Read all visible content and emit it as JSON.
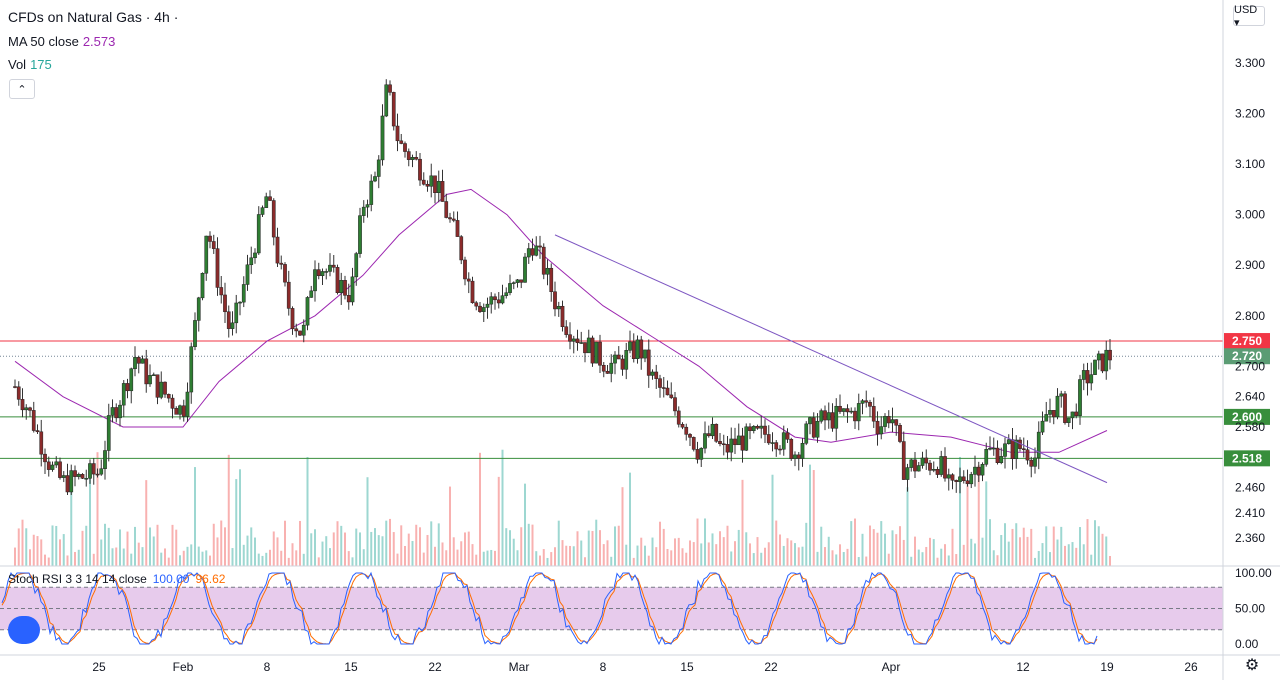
{
  "header": {
    "title": "CFDs on Natural Gas · 4h ·",
    "ma_label": "MA 50 close",
    "ma_value": "2.573",
    "vol_label": "Vol",
    "vol_value": "175",
    "collapse_glyph": "⌃"
  },
  "controls": {
    "currency_label": "USD ▾",
    "settings_icon": "gear-icon",
    "logo_icon": "tradingview-logo-icon"
  },
  "colors": {
    "up": "#26a69a",
    "down": "#ef5350",
    "candle_body": "#2e7d32",
    "candle_body_down": "#8b2b2b",
    "ma": "#9c27b0",
    "trend": "#7e57c2",
    "resistance": "#f23645",
    "support": "#388e3c",
    "stoch_k": "#2962ff",
    "stoch_d": "#ff6d00",
    "stoch_band": "#e1bee7"
  },
  "chart_data": {
    "type": "candlestick",
    "title": "CFDs on Natural Gas · 4h",
    "ylim": [
      2.35,
      3.33
    ],
    "y_ticks": [
      "3.300",
      "3.200",
      "3.100",
      "3.000",
      "2.900",
      "2.800",
      "2.700",
      "2.640",
      "2.580",
      "2.460",
      "2.410",
      "2.360"
    ],
    "y_tick_values": [
      3.3,
      3.2,
      3.1,
      3.0,
      2.9,
      2.8,
      2.7,
      2.64,
      2.58,
      2.46,
      2.41,
      2.36
    ],
    "x_ticks": [
      "25",
      "Feb",
      "8",
      "15",
      "22",
      "Mar",
      "8",
      "15",
      "22",
      "Apr",
      "12",
      "19",
      "26"
    ],
    "x_tick_dates": [
      "2021-01-25",
      "2021-02-01",
      "2021-02-08",
      "2021-02-15",
      "2021-02-22",
      "2021-03-01",
      "2021-03-08",
      "2021-03-15",
      "2021-03-22",
      "2021-04-01",
      "2021-04-12",
      "2021-04-19",
      "2021-04-26"
    ],
    "date_range": [
      "2021-01-18",
      "2021-04-19"
    ],
    "close_path": [
      [
        "2021-01-18",
        2.66
      ],
      [
        "2021-01-19",
        2.62
      ],
      [
        "2021-01-20",
        2.56
      ],
      [
        "2021-01-21",
        2.5
      ],
      [
        "2021-01-22",
        2.47
      ],
      [
        "2021-01-25",
        2.49
      ],
      [
        "2021-01-26",
        2.6
      ],
      [
        "2021-01-27",
        2.65
      ],
      [
        "2021-01-28",
        2.72
      ],
      [
        "2021-01-29",
        2.68
      ],
      [
        "2021-02-01",
        2.61
      ],
      [
        "2021-02-02",
        2.78
      ],
      [
        "2021-02-03",
        2.98
      ],
      [
        "2021-02-04",
        2.86
      ],
      [
        "2021-02-05",
        2.76
      ],
      [
        "2021-02-08",
        3.04
      ],
      [
        "2021-02-09",
        2.9
      ],
      [
        "2021-02-10",
        2.8
      ],
      [
        "2021-02-11",
        2.76
      ],
      [
        "2021-02-12",
        2.91
      ],
      [
        "2021-02-15",
        2.84
      ],
      [
        "2021-02-16",
        3.02
      ],
      [
        "2021-02-17",
        3.07
      ],
      [
        "2021-02-18",
        3.25
      ],
      [
        "2021-02-19",
        3.14
      ],
      [
        "2021-02-22",
        3.06
      ],
      [
        "2021-02-23",
        3.0
      ],
      [
        "2021-02-24",
        2.94
      ],
      [
        "2021-02-25",
        2.85
      ],
      [
        "2021-02-26",
        2.82
      ],
      [
        "2021-03-01",
        2.86
      ],
      [
        "2021-03-02",
        2.95
      ],
      [
        "2021-03-03",
        2.9
      ],
      [
        "2021-03-04",
        2.83
      ],
      [
        "2021-03-05",
        2.78
      ],
      [
        "2021-03-08",
        2.71
      ],
      [
        "2021-03-09",
        2.7
      ],
      [
        "2021-03-10",
        2.72
      ],
      [
        "2021-03-11",
        2.74
      ],
      [
        "2021-03-12",
        2.68
      ],
      [
        "2021-03-15",
        2.58
      ],
      [
        "2021-03-16",
        2.53
      ],
      [
        "2021-03-17",
        2.57
      ],
      [
        "2021-03-18",
        2.53
      ],
      [
        "2021-03-19",
        2.55
      ],
      [
        "2021-03-22",
        2.57
      ],
      [
        "2021-03-23",
        2.55
      ],
      [
        "2021-03-24",
        2.53
      ],
      [
        "2021-03-25",
        2.57
      ],
      [
        "2021-03-26",
        2.59
      ],
      [
        "2021-03-29",
        2.61
      ],
      [
        "2021-03-30",
        2.63
      ],
      [
        "2021-03-31",
        2.58
      ],
      [
        "2021-04-01",
        2.61
      ],
      [
        "2021-04-02",
        2.5
      ],
      [
        "2021-04-05",
        2.51
      ],
      [
        "2021-04-06",
        2.45
      ],
      [
        "2021-04-07",
        2.48
      ],
      [
        "2021-04-08",
        2.5
      ],
      [
        "2021-04-09",
        2.53
      ],
      [
        "2021-04-12",
        2.54
      ],
      [
        "2021-04-13",
        2.52
      ],
      [
        "2021-04-14",
        2.61
      ],
      [
        "2021-04-15",
        2.63
      ],
      [
        "2021-04-16",
        2.59
      ],
      [
        "2021-04-17",
        2.67
      ],
      [
        "2021-04-19",
        2.72
      ]
    ],
    "ma50_path": [
      [
        "2021-01-18",
        2.71
      ],
      [
        "2021-01-22",
        2.64
      ],
      [
        "2021-01-27",
        2.58
      ],
      [
        "2021-02-01",
        2.58
      ],
      [
        "2021-02-04",
        2.67
      ],
      [
        "2021-02-08",
        2.75
      ],
      [
        "2021-02-12",
        2.8
      ],
      [
        "2021-02-16",
        2.88
      ],
      [
        "2021-02-19",
        2.96
      ],
      [
        "2021-02-23",
        3.04
      ],
      [
        "2021-02-25",
        3.05
      ],
      [
        "2021-02-28",
        3.0
      ],
      [
        "2021-03-03",
        2.92
      ],
      [
        "2021-03-08",
        2.82
      ],
      [
        "2021-03-12",
        2.76
      ],
      [
        "2021-03-16",
        2.7
      ],
      [
        "2021-03-20",
        2.62
      ],
      [
        "2021-03-24",
        2.56
      ],
      [
        "2021-03-27",
        2.55
      ],
      [
        "2021-04-01",
        2.57
      ],
      [
        "2021-04-06",
        2.56
      ],
      [
        "2021-04-11",
        2.53
      ],
      [
        "2021-04-15",
        2.53
      ],
      [
        "2021-04-19",
        2.573
      ]
    ],
    "levels": [
      {
        "label": "2.750",
        "value": 2.75,
        "kind": "resistance"
      },
      {
        "label": "2.600",
        "value": 2.6,
        "kind": "support"
      },
      {
        "label": "2.518",
        "value": 2.518,
        "kind": "support"
      }
    ],
    "current_price": {
      "label": "2.720",
      "value": 2.72
    },
    "trendline": {
      "start": [
        "2021-03-04",
        2.96
      ],
      "end": [
        "2021-04-19",
        2.47
      ]
    },
    "stoch_rsi": {
      "label": "Stoch RSI 3 3 14 14 close",
      "k_value": "100.00",
      "d_value": "96.62",
      "y_ticks": [
        "100.00",
        "50.00",
        "0.00"
      ],
      "band": [
        20,
        80
      ]
    }
  }
}
